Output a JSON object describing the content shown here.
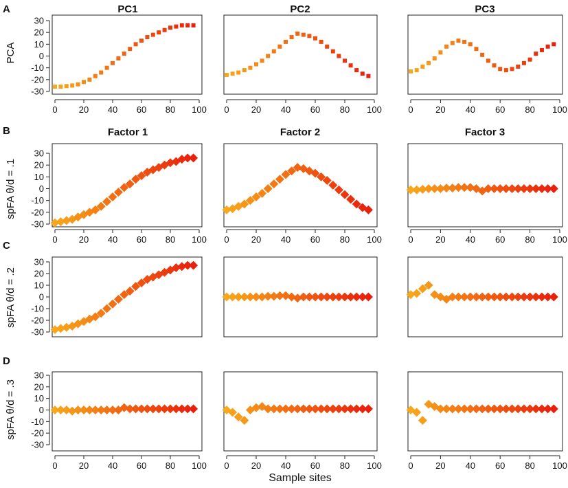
{
  "figure": {
    "xlabel": "Sample sites",
    "row_letters": [
      "A",
      "B",
      "C",
      "D"
    ],
    "row_ylabels": [
      "PCA",
      "spFA θ/d = .1",
      "spFA θ/d = .2",
      "spFA θ/d = .3"
    ],
    "col_titles_row_a": [
      "PC1",
      "PC2",
      "PC3"
    ],
    "col_titles_row_b": [
      "Factor 1",
      "Factor 2",
      "Factor 3"
    ],
    "colors": {
      "low": "#f7a81b",
      "high": "#e8200c"
    }
  },
  "chart_data": [
    {
      "id": "A1",
      "type": "scatter",
      "marker": "dot",
      "title": "PC1",
      "ylabel": "PCA",
      "xlim": [
        0,
        100
      ],
      "ylim": [
        -30,
        30
      ],
      "x": [
        0,
        4,
        8,
        12,
        16,
        20,
        24,
        28,
        32,
        36,
        40,
        44,
        48,
        52,
        56,
        60,
        64,
        68,
        72,
        76,
        80,
        84,
        88,
        92,
        96
      ],
      "y": [
        -26,
        -26,
        -25.5,
        -25,
        -24,
        -22,
        -20,
        -17,
        -14,
        -10,
        -6,
        -2,
        2,
        6,
        10,
        13,
        16,
        18,
        20,
        22,
        24,
        25,
        26,
        26,
        26
      ]
    },
    {
      "id": "A2",
      "type": "scatter",
      "marker": "dot",
      "title": "PC2",
      "ylabel": "",
      "xlim": [
        0,
        100
      ],
      "ylim": [
        -30,
        30
      ],
      "x": [
        0,
        4,
        8,
        12,
        16,
        20,
        24,
        28,
        32,
        36,
        40,
        44,
        48,
        52,
        56,
        60,
        64,
        68,
        72,
        76,
        80,
        84,
        88,
        92,
        96
      ],
      "y": [
        -16,
        -15,
        -14,
        -12,
        -10,
        -7,
        -4,
        0,
        4,
        8,
        12,
        16,
        19,
        18,
        17,
        15,
        12,
        8,
        4,
        0,
        -4,
        -8,
        -12,
        -15,
        -17
      ]
    },
    {
      "id": "A3",
      "type": "scatter",
      "marker": "dot",
      "title": "PC3",
      "ylabel": "",
      "xlim": [
        0,
        100
      ],
      "ylim": [
        -30,
        30
      ],
      "x": [
        0,
        4,
        8,
        12,
        16,
        20,
        24,
        28,
        32,
        36,
        40,
        44,
        48,
        52,
        56,
        60,
        64,
        68,
        72,
        76,
        80,
        84,
        88,
        92,
        96
      ],
      "y": [
        -13,
        -12,
        -9,
        -6,
        -2,
        3,
        8,
        11,
        13,
        12,
        10,
        6,
        1,
        -4,
        -8,
        -11,
        -12,
        -11,
        -9,
        -6,
        -3,
        2,
        5,
        8,
        10
      ]
    },
    {
      "id": "B1",
      "type": "scatter",
      "marker": "diamond",
      "title": "Factor 1",
      "ylabel": "spFA θ/d = .1",
      "xlim": [
        0,
        100
      ],
      "ylim": [
        -30,
        30
      ],
      "x": [
        0,
        4,
        8,
        12,
        16,
        20,
        24,
        28,
        32,
        36,
        40,
        44,
        48,
        52,
        56,
        60,
        64,
        68,
        72,
        76,
        80,
        84,
        88,
        92,
        96
      ],
      "y": [
        -29,
        -28,
        -27,
        -26,
        -24,
        -22,
        -20,
        -18,
        -15,
        -11,
        -7,
        -3,
        1,
        4,
        8,
        11,
        14,
        16,
        18,
        20,
        22,
        23,
        25,
        26,
        26
      ]
    },
    {
      "id": "B2",
      "type": "scatter",
      "marker": "diamond",
      "title": "Factor 2",
      "ylabel": "",
      "xlim": [
        0,
        100
      ],
      "ylim": [
        -30,
        30
      ],
      "x": [
        0,
        4,
        8,
        12,
        16,
        20,
        24,
        28,
        32,
        36,
        40,
        44,
        48,
        52,
        56,
        60,
        64,
        68,
        72,
        76,
        80,
        84,
        88,
        92,
        96
      ],
      "y": [
        -18,
        -17,
        -15,
        -13,
        -10,
        -7,
        -4,
        0,
        4,
        8,
        12,
        15,
        18,
        17,
        15,
        13,
        10,
        7,
        3,
        -1,
        -5,
        -9,
        -13,
        -16,
        -18
      ]
    },
    {
      "id": "B3",
      "type": "scatter",
      "marker": "diamond",
      "title": "Factor 3",
      "ylabel": "",
      "xlim": [
        0,
        100
      ],
      "ylim": [
        -30,
        30
      ],
      "x": [
        0,
        4,
        8,
        12,
        16,
        20,
        24,
        28,
        32,
        36,
        40,
        44,
        48,
        52,
        56,
        60,
        64,
        68,
        72,
        76,
        80,
        84,
        88,
        92,
        96
      ],
      "y": [
        -1,
        -1,
        -0.5,
        0,
        0,
        0,
        0.5,
        0.5,
        1,
        1,
        1,
        0,
        -2,
        0,
        0,
        0,
        0,
        0,
        0,
        0,
        0,
        0,
        0,
        0,
        0
      ]
    },
    {
      "id": "C1",
      "type": "scatter",
      "marker": "diamond",
      "title": "",
      "ylabel": "spFA θ/d = .2",
      "xlim": [
        0,
        100
      ],
      "ylim": [
        -30,
        30
      ],
      "x": [
        0,
        4,
        8,
        12,
        16,
        20,
        24,
        28,
        32,
        36,
        40,
        44,
        48,
        52,
        56,
        60,
        64,
        68,
        72,
        76,
        80,
        84,
        88,
        92,
        96
      ],
      "y": [
        -28,
        -27,
        -26,
        -25,
        -23,
        -21,
        -19,
        -17,
        -14,
        -10,
        -6,
        -2,
        2,
        5,
        9,
        12,
        15,
        17,
        19,
        21,
        23,
        25,
        26,
        27,
        27
      ]
    },
    {
      "id": "C2",
      "type": "scatter",
      "marker": "diamond",
      "title": "",
      "ylabel": "",
      "xlim": [
        0,
        100
      ],
      "ylim": [
        -30,
        30
      ],
      "x": [
        0,
        4,
        8,
        12,
        16,
        20,
        24,
        28,
        32,
        36,
        40,
        44,
        48,
        52,
        56,
        60,
        64,
        68,
        72,
        76,
        80,
        84,
        88,
        92,
        96
      ],
      "y": [
        0,
        0,
        0,
        0,
        0,
        0,
        0,
        0.5,
        0.5,
        1,
        1,
        0,
        -1,
        0,
        0,
        0,
        0,
        0,
        0,
        0,
        0,
        0,
        0,
        0,
        0
      ]
    },
    {
      "id": "C3",
      "type": "scatter",
      "marker": "diamond",
      "title": "",
      "ylabel": "",
      "xlim": [
        0,
        100
      ],
      "ylim": [
        -30,
        30
      ],
      "x": [
        0,
        4,
        8,
        12,
        16,
        20,
        24,
        28,
        32,
        36,
        40,
        44,
        48,
        52,
        56,
        60,
        64,
        68,
        72,
        76,
        80,
        84,
        88,
        92,
        96
      ],
      "y": [
        2,
        3,
        7,
        10,
        2,
        0,
        -2,
        0,
        0,
        0,
        0,
        0,
        0,
        0,
        0,
        0,
        0,
        0,
        0,
        0,
        0,
        0,
        0,
        0,
        0
      ]
    },
    {
      "id": "D1",
      "type": "scatter",
      "marker": "diamond",
      "title": "",
      "ylabel": "spFA θ/d = .3",
      "xlim": [
        0,
        100
      ],
      "ylim": [
        -30,
        30
      ],
      "x": [
        0,
        4,
        8,
        12,
        16,
        20,
        24,
        28,
        32,
        36,
        40,
        44,
        48,
        52,
        56,
        60,
        64,
        68,
        72,
        76,
        80,
        84,
        88,
        92,
        96
      ],
      "y": [
        0,
        0,
        0,
        -1,
        0,
        0,
        0,
        0,
        0,
        0,
        0,
        0,
        2,
        1,
        1,
        1,
        1,
        1,
        1,
        1,
        1,
        1,
        1,
        1,
        1
      ]
    },
    {
      "id": "D2",
      "type": "scatter",
      "marker": "diamond",
      "title": "",
      "ylabel": "",
      "xlim": [
        0,
        100
      ],
      "ylim": [
        -30,
        30
      ],
      "x": [
        0,
        4,
        8,
        12,
        16,
        20,
        24,
        28,
        32,
        36,
        40,
        44,
        48,
        52,
        56,
        60,
        64,
        68,
        72,
        76,
        80,
        84,
        88,
        92,
        96
      ],
      "y": [
        0,
        -2,
        -6,
        -9,
        0,
        2,
        3,
        1,
        1,
        1,
        1,
        1,
        1,
        1,
        1,
        1,
        1,
        1,
        1,
        1,
        1,
        1,
        1,
        1,
        1
      ]
    },
    {
      "id": "D3",
      "type": "scatter",
      "marker": "diamond",
      "title": "",
      "ylabel": "",
      "xlim": [
        0,
        100
      ],
      "ylim": [
        -30,
        30
      ],
      "x": [
        0,
        4,
        8,
        12,
        16,
        20,
        24,
        28,
        32,
        36,
        40,
        44,
        48,
        52,
        56,
        60,
        64,
        68,
        72,
        76,
        80,
        84,
        88,
        92,
        96
      ],
      "y": [
        0,
        -2,
        -9,
        5,
        3,
        1,
        1,
        1,
        1,
        1,
        1,
        1,
        1,
        1,
        1,
        1,
        1,
        1,
        1,
        1,
        1,
        1,
        1,
        1,
        1
      ]
    }
  ]
}
